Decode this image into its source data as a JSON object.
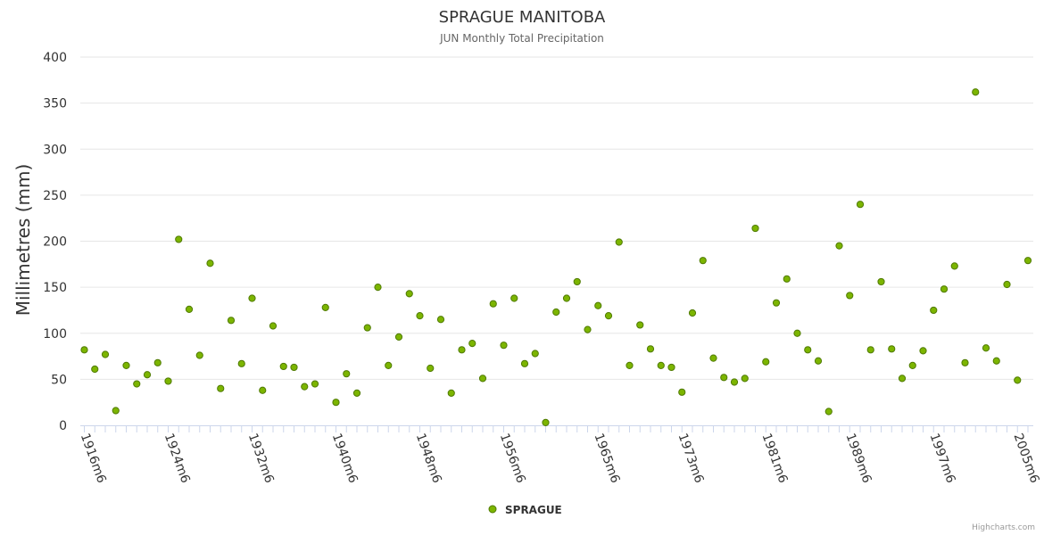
{
  "chart_data": {
    "type": "scatter",
    "title": "SPRAGUE MANITOBA",
    "subtitle": "JUN Monthly Total Precipitation",
    "ylabel": "Millimetres (mm)",
    "xlabel": "",
    "ylim": [
      0,
      400
    ],
    "yticks": [
      0,
      50,
      100,
      150,
      200,
      250,
      300,
      350,
      400
    ],
    "x_start_year": 1916,
    "x_tick_years": [
      1916,
      1924,
      1932,
      1940,
      1948,
      1956,
      1965,
      1973,
      1981,
      1989,
      1997,
      2005
    ],
    "x_tick_labels": [
      "1916m6",
      "1924m6",
      "1932m6",
      "1940m6",
      "1948m6",
      "1956m6",
      "1965m6",
      "1973m6",
      "1981m6",
      "1989m6",
      "1997m6",
      "2005m6"
    ],
    "legend": {
      "position": "bottom-center",
      "entries": [
        "SPRAGUE"
      ]
    },
    "grid": true,
    "series": [
      {
        "name": "SPRAGUE",
        "color": "#7cb500",
        "values": [
          82,
          61,
          77,
          16,
          65,
          45,
          55,
          68,
          48,
          202,
          126,
          76,
          176,
          40,
          114,
          67,
          138,
          38,
          108,
          64,
          63,
          42,
          45,
          128,
          25,
          56,
          35,
          106,
          150,
          65,
          96,
          143,
          119,
          62,
          115,
          35,
          82,
          89,
          51,
          132,
          87,
          138,
          67,
          78,
          3,
          123,
          138,
          156,
          104,
          130,
          119,
          199,
          65,
          109,
          83,
          65,
          63,
          36,
          122,
          179,
          73,
          52,
          47,
          51,
          214,
          69,
          133,
          159,
          100,
          82,
          70,
          15,
          195,
          141,
          240,
          82,
          156,
          83,
          51,
          65,
          81,
          125,
          148,
          173,
          68,
          362,
          84,
          70,
          153,
          49,
          179
        ]
      }
    ]
  },
  "credits": "Highcharts.com",
  "colors": {
    "marker_fill": "#7cb500",
    "marker_stroke": "#4f7a00",
    "grid": "#e6e6e6",
    "axis": "#ccd6eb"
  }
}
